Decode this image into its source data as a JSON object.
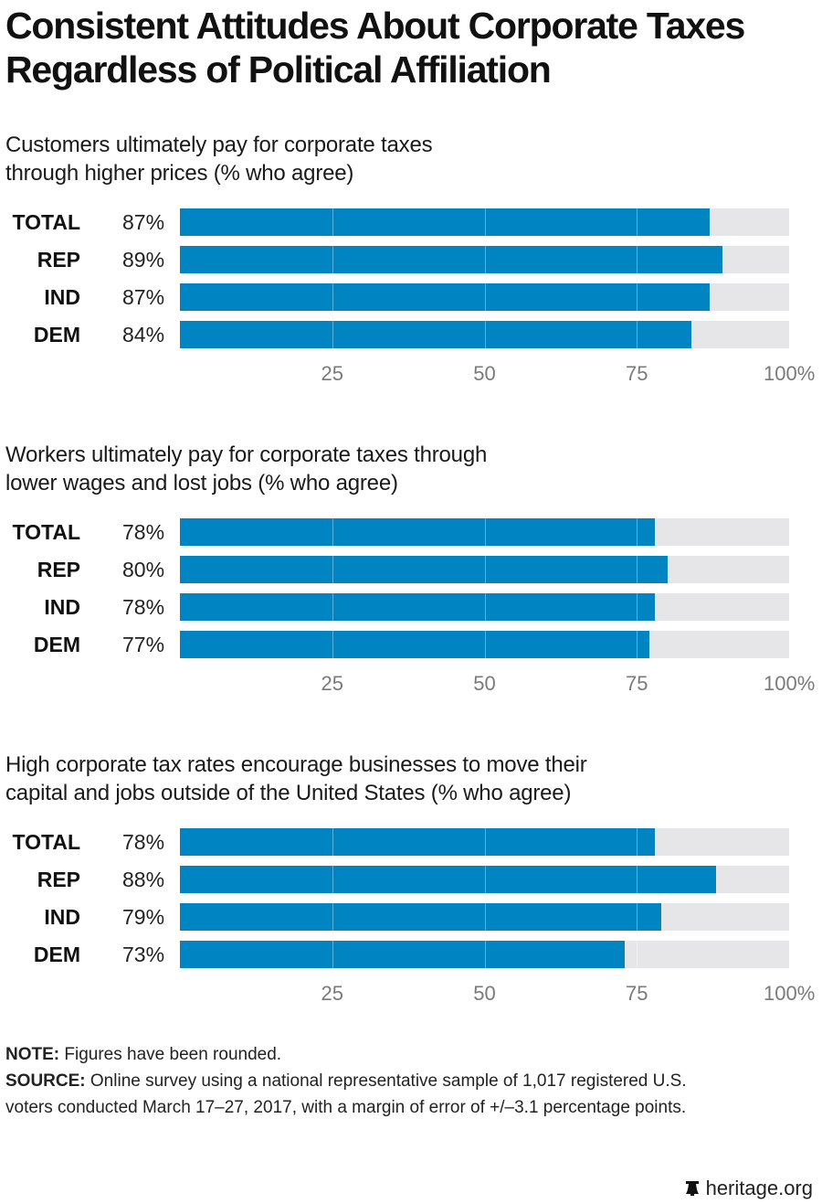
{
  "title": "Consistent Attitudes About Corporate Taxes Regardless of Political Affiliation",
  "chart_data": [
    {
      "type": "bar",
      "orientation": "horizontal",
      "title": "Customers ultimately pay for corporate taxes through higher prices (% who agree)",
      "categories": [
        "TOTAL",
        "REP",
        "IND",
        "DEM"
      ],
      "values": [
        87,
        89,
        87,
        84
      ],
      "value_labels": [
        "87%",
        "89%",
        "87%",
        "84%"
      ],
      "xlim": [
        0,
        100
      ],
      "xticks": [
        "25",
        "50",
        "75",
        "100%"
      ],
      "xtick_values": [
        25,
        50,
        75,
        100
      ],
      "grid": true
    },
    {
      "type": "bar",
      "orientation": "horizontal",
      "title": "Workers ultimately pay for corporate taxes through lower wages and lost jobs (% who agree)",
      "categories": [
        "TOTAL",
        "REP",
        "IND",
        "DEM"
      ],
      "values": [
        78,
        80,
        78,
        77
      ],
      "value_labels": [
        "78%",
        "80%",
        "78%",
        "77%"
      ],
      "xlim": [
        0,
        100
      ],
      "xticks": [
        "25",
        "50",
        "75",
        "100%"
      ],
      "xtick_values": [
        25,
        50,
        75,
        100
      ],
      "grid": true
    },
    {
      "type": "bar",
      "orientation": "horizontal",
      "title": "High corporate tax rates encourage businesses to move their capital and jobs outside of the United States (% who agree)",
      "categories": [
        "TOTAL",
        "REP",
        "IND",
        "DEM"
      ],
      "values": [
        78,
        88,
        79,
        73
      ],
      "value_labels": [
        "78%",
        "88%",
        "79%",
        "73%"
      ],
      "xlim": [
        0,
        100
      ],
      "xticks": [
        "25",
        "50",
        "75",
        "100%"
      ],
      "xtick_values": [
        25,
        50,
        75,
        100
      ],
      "grid": true
    }
  ],
  "subtitles": [
    [
      "Customers ultimately pay for corporate taxes",
      "through higher prices (% who agree)"
    ],
    [
      "Workers ultimately pay for corporate taxes through",
      "lower wages and lost jobs (% who agree)"
    ],
    [
      "High corporate tax rates encourage businesses to move their",
      "capital and jobs outside of the United States (% who agree)"
    ]
  ],
  "colors": {
    "bar": "#0085c2",
    "track": "#e6e6e8",
    "tick": "#7a7a7a"
  },
  "footer": {
    "note_label": "NOTE:",
    "note_text": " Figures have been rounded.",
    "source_label": "SOURCE:",
    "source_text_1": " Online survey using a national representative sample of 1,017 registered U.S.",
    "source_text_2": "voters conducted March 17–27, 2017, with a margin of error of +/–3.1 percentage points."
  },
  "logo": {
    "icon": "liberty-bell-icon",
    "text": "heritage.org"
  }
}
